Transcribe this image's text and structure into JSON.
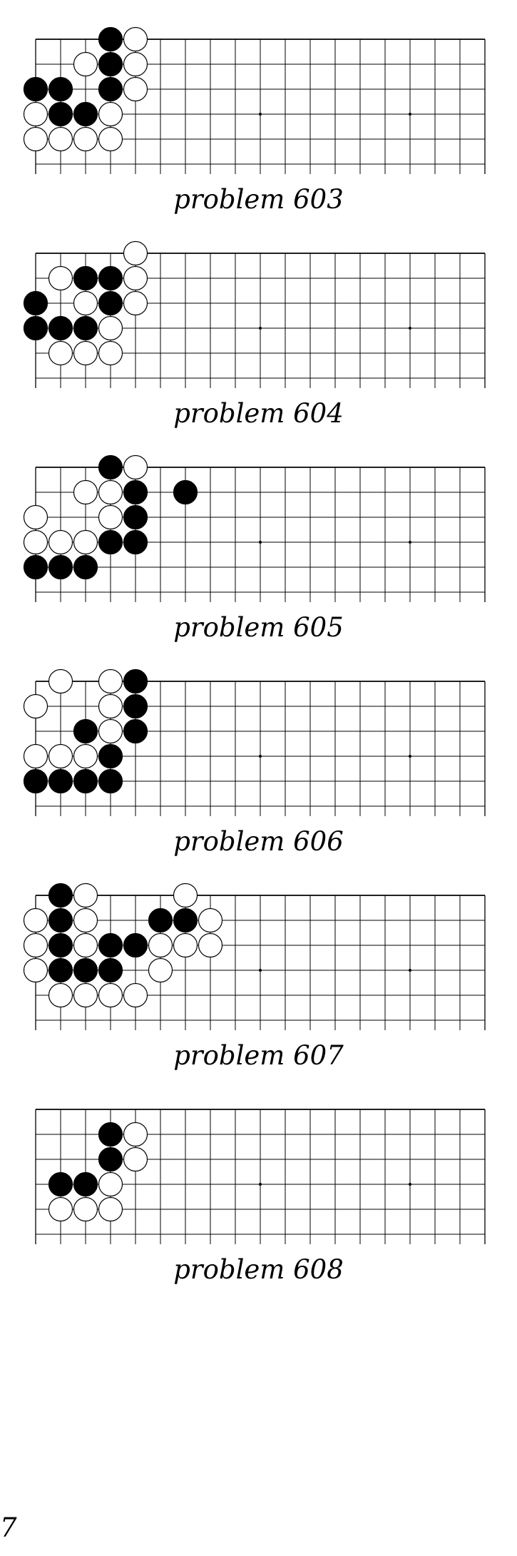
{
  "problems": [
    {
      "caption": "problem 603",
      "black": [
        [
          3,
          0
        ],
        [
          3,
          1
        ],
        [
          0,
          2
        ],
        [
          1,
          2
        ],
        [
          3,
          2
        ],
        [
          1,
          3
        ],
        [
          2,
          3
        ]
      ],
      "white": [
        [
          4,
          0
        ],
        [
          2,
          1
        ],
        [
          4,
          1
        ],
        [
          4,
          2
        ],
        [
          0,
          3
        ],
        [
          3,
          3
        ],
        [
          0,
          4
        ],
        [
          1,
          4
        ],
        [
          2,
          4
        ],
        [
          3,
          4
        ]
      ]
    },
    {
      "caption": "problem 604",
      "black": [
        [
          2,
          1
        ],
        [
          3,
          1
        ],
        [
          0,
          2
        ],
        [
          3,
          2
        ],
        [
          0,
          3
        ],
        [
          1,
          3
        ],
        [
          2,
          3
        ]
      ],
      "white": [
        [
          4,
          0
        ],
        [
          1,
          1
        ],
        [
          4,
          1
        ],
        [
          2,
          2
        ],
        [
          4,
          2
        ],
        [
          3,
          3
        ],
        [
          1,
          4
        ],
        [
          2,
          4
        ],
        [
          3,
          4
        ]
      ]
    },
    {
      "caption": "problem 605",
      "black": [
        [
          3,
          0
        ],
        [
          4,
          1
        ],
        [
          6,
          1
        ],
        [
          4,
          2
        ],
        [
          3,
          3
        ],
        [
          4,
          3
        ],
        [
          0,
          4
        ],
        [
          1,
          4
        ],
        [
          2,
          4
        ]
      ],
      "white": [
        [
          4,
          0
        ],
        [
          2,
          1
        ],
        [
          3,
          1
        ],
        [
          0,
          2
        ],
        [
          3,
          2
        ],
        [
          0,
          3
        ],
        [
          1,
          3
        ],
        [
          2,
          3
        ]
      ]
    },
    {
      "caption": "problem 606",
      "black": [
        [
          4,
          0
        ],
        [
          4,
          1
        ],
        [
          2,
          2
        ],
        [
          4,
          2
        ],
        [
          3,
          3
        ],
        [
          0,
          4
        ],
        [
          1,
          4
        ],
        [
          2,
          4
        ],
        [
          3,
          4
        ]
      ],
      "white": [
        [
          1,
          0
        ],
        [
          3,
          0
        ],
        [
          0,
          1
        ],
        [
          3,
          1
        ],
        [
          3,
          2
        ],
        [
          0,
          3
        ],
        [
          1,
          3
        ],
        [
          2,
          3
        ]
      ]
    },
    {
      "caption": "problem 607",
      "black": [
        [
          1,
          0
        ],
        [
          1,
          1
        ],
        [
          5,
          1
        ],
        [
          6,
          1
        ],
        [
          1,
          2
        ],
        [
          3,
          2
        ],
        [
          4,
          2
        ],
        [
          1,
          3
        ],
        [
          2,
          3
        ],
        [
          3,
          3
        ]
      ],
      "white": [
        [
          2,
          0
        ],
        [
          6,
          0
        ],
        [
          0,
          1
        ],
        [
          2,
          1
        ],
        [
          7,
          1
        ],
        [
          0,
          2
        ],
        [
          2,
          2
        ],
        [
          5,
          2
        ],
        [
          6,
          2
        ],
        [
          7,
          2
        ],
        [
          0,
          3
        ],
        [
          5,
          3
        ],
        [
          1,
          4
        ],
        [
          2,
          4
        ],
        [
          3,
          4
        ],
        [
          4,
          4
        ]
      ]
    },
    {
      "caption": "problem 608",
      "black": [
        [
          3,
          1
        ],
        [
          3,
          2
        ],
        [
          1,
          3
        ],
        [
          2,
          3
        ]
      ],
      "white": [
        [
          4,
          1
        ],
        [
          4,
          2
        ],
        [
          3,
          3
        ],
        [
          1,
          4
        ],
        [
          2,
          4
        ],
        [
          3,
          4
        ]
      ]
    }
  ],
  "page_number": "7"
}
